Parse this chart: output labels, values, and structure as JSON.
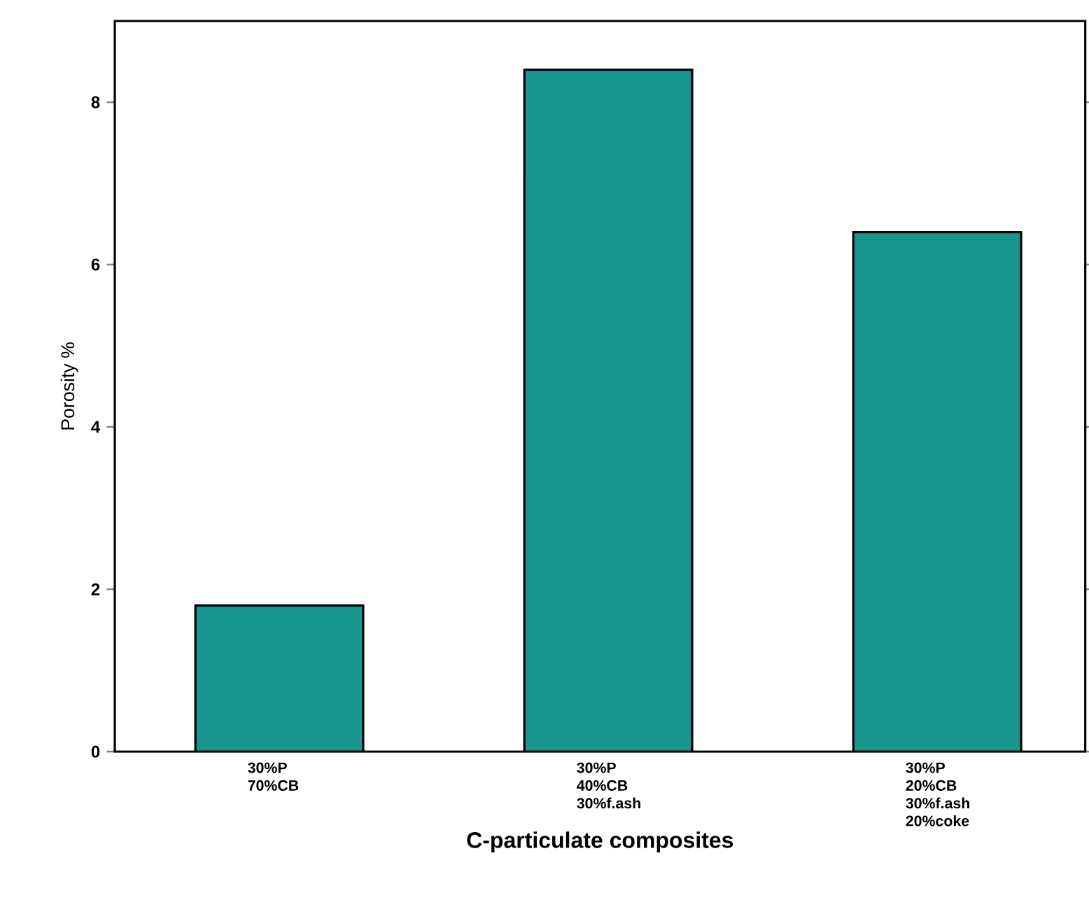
{
  "chart_data": {
    "type": "bar",
    "categories": [
      "30%P 70%CB",
      "30%P 40%CB 30%f.ash",
      "30%P 20%CB 30%f.ash 20%coke"
    ],
    "values": [
      1.8,
      8.4,
      6.4
    ],
    "color": "#1a9690",
    "xlabel": "C-particulate composites",
    "ylabel": "Porosity %",
    "ylim": [
      0,
      9
    ],
    "yticks": [
      0,
      2,
      4,
      6,
      8
    ],
    "grid": false
  }
}
